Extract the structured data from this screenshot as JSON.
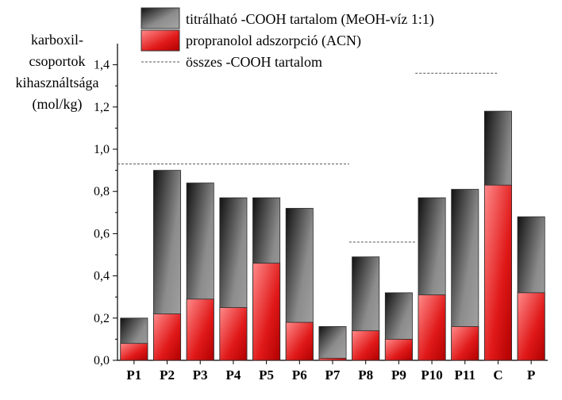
{
  "chart_data": {
    "type": "bar",
    "categories": [
      "P1",
      "P2",
      "P3",
      "P4",
      "P5",
      "P6",
      "P7",
      "P8",
      "P9",
      "P10",
      "P11",
      "C",
      "P"
    ],
    "series": [
      {
        "name": "titrálható -COOH tartalom (MeOH-víz 1:1)",
        "values": [
          0.2,
          0.9,
          0.84,
          0.77,
          0.77,
          0.72,
          0.16,
          0.49,
          0.32,
          0.77,
          0.81,
          1.18,
          0.68
        ]
      },
      {
        "name": "propranolol adszorpció (ACN)",
        "values": [
          0.08,
          0.22,
          0.29,
          0.25,
          0.46,
          0.18,
          0.01,
          0.14,
          0.1,
          0.31,
          0.16,
          0.83,
          0.32
        ]
      }
    ],
    "reference_lines": {
      "name": "összes -COOH tartalom",
      "segments": [
        {
          "from": "P1",
          "to": "P7",
          "value": 0.93
        },
        {
          "from": "P8",
          "to": "P9",
          "value": 0.56
        },
        {
          "from": "P10",
          "to": "C",
          "value": 1.36
        }
      ]
    },
    "ylabel_lines": [
      "karboxil-",
      "csoportok",
      "kihasználtsága",
      "(mol/kg)"
    ],
    "xlabel": "",
    "ylim": [
      0,
      1.5
    ],
    "yticks": [
      "0,0",
      "0,2",
      "0,4",
      "0,6",
      "0,8",
      "1,0",
      "1,2",
      "1,4"
    ],
    "grid": false,
    "legend_position": "top",
    "colors": {
      "titratable_gradient": [
        "#1a1a1a",
        "#9a9a9a"
      ],
      "adsorption_gradient": [
        "#ff7a7a",
        "#c40000"
      ],
      "reference_line": "#555555"
    }
  }
}
